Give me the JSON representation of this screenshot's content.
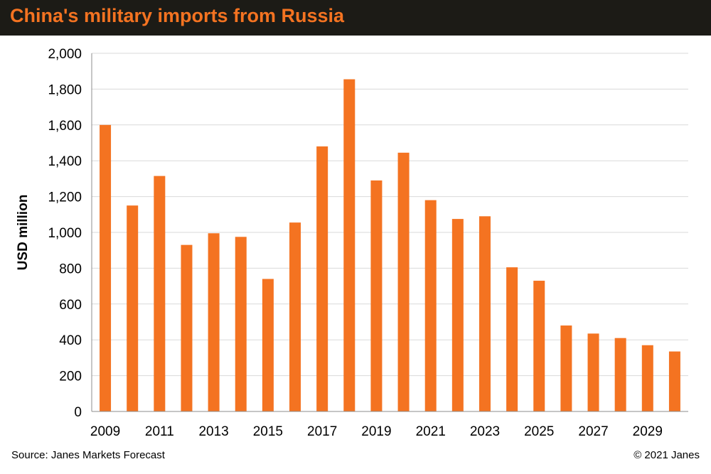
{
  "header": {
    "title": "China's military imports from Russia"
  },
  "colors": {
    "bar": "#f47321",
    "header_bg": "#1c1b16",
    "grid": "#d9d9d9"
  },
  "footer": {
    "source": "Source: Janes Markets Forecast",
    "copyright": "© 2021 Janes"
  },
  "chart_data": {
    "type": "bar",
    "title": "China's military imports from Russia",
    "xlabel": "",
    "ylabel": "USD million",
    "ylim": [
      0,
      2000
    ],
    "yticks": [
      0,
      200,
      400,
      600,
      800,
      1000,
      1200,
      1400,
      1600,
      1800,
      2000
    ],
    "ytick_labels": [
      "0",
      "200",
      "400",
      "600",
      "800",
      "1,000",
      "1,200",
      "1,400",
      "1,600",
      "1,800",
      "2,000"
    ],
    "grid": true,
    "categories": [
      "2009",
      "2010",
      "2011",
      "2012",
      "2013",
      "2014",
      "2015",
      "2016",
      "2017",
      "2018",
      "2019",
      "2020",
      "2021",
      "2022",
      "2023",
      "2024",
      "2025",
      "2026",
      "2027",
      "2028",
      "2029",
      "2030"
    ],
    "xtick_labels_shown": [
      "2009",
      "2011",
      "2013",
      "2015",
      "2017",
      "2019",
      "2021",
      "2023",
      "2025",
      "2027",
      "2029"
    ],
    "values": [
      1600,
      1150,
      1315,
      930,
      995,
      975,
      740,
      1055,
      1480,
      1855,
      1290,
      1445,
      1180,
      1075,
      1090,
      805,
      730,
      480,
      435,
      410,
      370,
      335
    ]
  }
}
